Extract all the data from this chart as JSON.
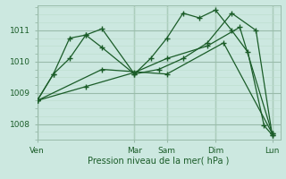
{
  "background_color": "#cce8e0",
  "grid_color_major": "#99bbaa",
  "grid_color_minor": "#bbddcc",
  "line_color": "#1a5c28",
  "xlabel": "Pression niveau de la mer( hPa )",
  "ylim": [
    1007.5,
    1011.8
  ],
  "yticks": [
    1008,
    1009,
    1010,
    1011
  ],
  "x_day_labels": [
    "Ven",
    "Mar",
    "Sam",
    "Dim",
    "Lun"
  ],
  "x_day_positions": [
    0,
    12,
    16,
    22,
    29
  ],
  "xlim": [
    0,
    30
  ],
  "lines": [
    {
      "x": [
        0,
        2,
        4,
        6,
        8,
        12,
        14,
        16,
        18,
        20,
        22,
        24,
        26,
        28,
        29
      ],
      "y": [
        1008.75,
        1009.6,
        1010.75,
        1010.85,
        1011.05,
        1009.6,
        1010.1,
        1010.75,
        1011.55,
        1011.4,
        1011.65,
        1011.0,
        1010.3,
        1007.95,
        1007.65
      ]
    },
    {
      "x": [
        0,
        2,
        4,
        6,
        8,
        12,
        15,
        18,
        21,
        24,
        27,
        29
      ],
      "y": [
        1008.75,
        1009.6,
        1010.1,
        1010.85,
        1010.45,
        1009.6,
        1009.75,
        1010.1,
        1010.6,
        1011.55,
        1011.0,
        1007.65
      ]
    },
    {
      "x": [
        0,
        6,
        12,
        16,
        21,
        25,
        29
      ],
      "y": [
        1008.75,
        1009.2,
        1009.65,
        1010.1,
        1010.5,
        1011.1,
        1007.7
      ]
    },
    {
      "x": [
        0,
        8,
        16,
        23,
        29
      ],
      "y": [
        1008.75,
        1009.75,
        1009.6,
        1010.6,
        1007.7
      ]
    }
  ],
  "vertical_lines": [
    0,
    12,
    16,
    22,
    29
  ]
}
